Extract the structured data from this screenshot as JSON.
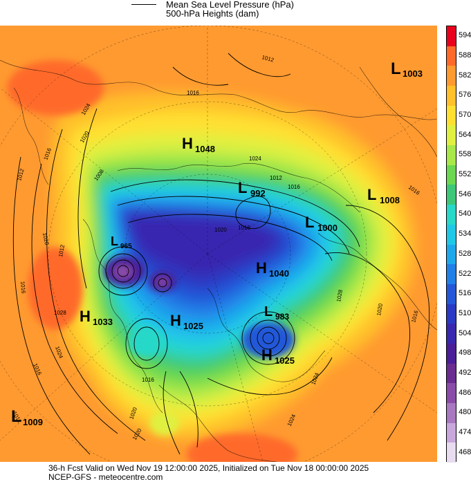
{
  "legend": {
    "mslp_label": "Mean Sea Level Pressure (hPa)",
    "heights_label": "500-hPa Heights (dam)"
  },
  "colorbar": {
    "levels": [
      "594",
      "588",
      "582",
      "576",
      "570",
      "564",
      "558",
      "552",
      "546",
      "540",
      "534",
      "528",
      "522",
      "516",
      "510",
      "504",
      "498",
      "492",
      "486",
      "480",
      "474",
      "468"
    ],
    "colors": [
      "#e8001c",
      "#ff6a2a",
      "#ff9a30",
      "#ffc02a",
      "#ffe030",
      "#e0f040",
      "#a8e848",
      "#6ad850",
      "#3cc878",
      "#28d8c8",
      "#20c8e8",
      "#1ea8ec",
      "#2080e8",
      "#2458d8",
      "#2a3ac4",
      "#3828b0",
      "#4a1e98",
      "#6a2c90",
      "#8a4ca8",
      "#a878c0",
      "#c8a8dc",
      "#e8dcf0"
    ]
  },
  "pressure_systems": [
    {
      "type": "L",
      "value": "1003"
    },
    {
      "type": "H",
      "value": "1048"
    },
    {
      "type": "L",
      "value": "992"
    },
    {
      "type": "L",
      "value": "1008"
    },
    {
      "type": "L",
      "value": "1000"
    },
    {
      "type": "L",
      "value": "965"
    },
    {
      "type": "H",
      "value": "1040"
    },
    {
      "type": "H",
      "value": "1033"
    },
    {
      "type": "H",
      "value": "1025"
    },
    {
      "type": "L",
      "value": "983"
    },
    {
      "type": "H",
      "value": "1025"
    },
    {
      "type": "L",
      "value": "1009"
    }
  ],
  "isobar_labels": [
    "1012",
    "1016",
    "1020",
    "1024",
    "1028",
    "1012",
    "1016",
    "1020",
    "1024",
    "1016",
    "1020",
    "1024",
    "1012",
    "1016",
    "1016",
    "1016",
    "1020",
    "1024",
    "1028",
    "1008",
    "1012",
    "1016",
    "1016",
    "1016",
    "1024",
    "1020",
    "1020",
    "1012"
  ],
  "footer": {
    "line1": "36-h Fcst Valid on Wed Nov 19 12:00:00 2025, Initialized on Tue Nov 18 00:00:00 2025",
    "line2": "NCEP-GFS  - meteocentre.com"
  }
}
